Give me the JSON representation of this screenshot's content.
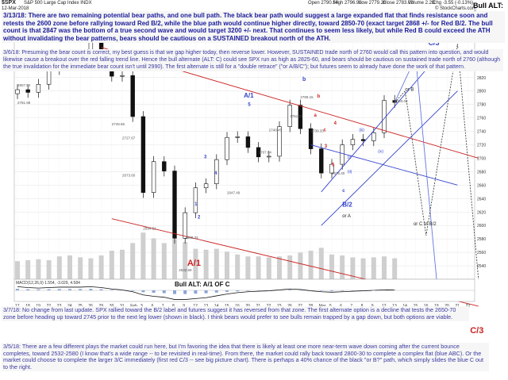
{
  "header": {
    "symbol": "$SPX",
    "name": "S&P 500 Large Cap Index  INDX",
    "date": "12-Mar-2018",
    "open": "Open 2790.54",
    "high": "High 2796.98",
    "low": "Low 2779.26",
    "close": "Close 2783.02",
    "volume": "Volume 2.2B",
    "change": "Chg -3.55 (-0.13%)",
    "watermark": "© StockCharts.com",
    "legend_spx": "■ $SPX (Daily) 2783.02",
    "legend_vol": "■ Volume 2,324,815,376",
    "bull_alt": "Bull ALT: 3"
  },
  "notes": {
    "top": "3/13/18:  There are two remaining potential bear paths, and one bull path.  The black bear path would suggest a large expanded flat that finds resistance soon and retests the 2600 zone before rallying toward Red B/2, while the blue path would continue higher directly, toward 2850-70 (exact target 2868 +/- for Red B/2.  The bull count is that 2847 was the bottom of a true second wave and would target 3200 +/- next.  That continues to seem less likely, but while Red B could exceed the ATH without invalidating the bear patterns, bears should be cautious on a SUSTAINED breakout north of the ATH.",
    "mid": "3/6/18:    Presuming the bear count is correct, my best guess is that we gap higher today, then reverse lower.  However, SUSTAINED trade north of 2760 would call this pattern into question, and would likewise cause a breakout over the red falling trend line.  Hence the bull alternate (ALT: C) could see SPX run as high as 2825-60, and bears should be cautious on sustained trade north of 2760 (although the true invalidation for the immediate bear count isn't until 2990).  The first alternate is still for a \"double retrace\" (\"or A/B/C\"); but futures seem to already have done the work of that pattern.",
    "b1": "3/7/18:  No change from last update.  SPX rallied toward the B/2 label and futures suggest it has reversed from that zone.  The first alternate option is a decline that tests the 2650-70 zone before heading up toward 2745 prior to the next leg lower (shown in black).  I think bears would prefer to see bulls remain trapped by a gap down, but both options are viable.",
    "b2": "3/5/18:  There are a few different plays the market could run here, but I'm favoring the idea that there is likely at least one more near-term wave down coming after the current bounce completes, toward 2532-2580 (I know that's a wide range -- to be revisited in real-time).  From there, the market could rally back toward 2800-30 to complete a complex flat (blue ABC).  Or the market could choose to complete the larger 3/C immediately (first red C/3 -- see big picture chart).  There is perhaps a 40% chance of the black \"or B?\" path, which simply slides the blue C out to the right."
  },
  "labels": {
    "a1_red": "A/1",
    "b2_red": "B/2?",
    "c3_blue": "C/3",
    "c3_red": "C/3",
    "a1_blue": "A/1",
    "five": "5",
    "b_blue": "b",
    "c_blue": "c",
    "b2_blue": "B/2",
    "or_a": "or A",
    "or_b": "or B",
    "or_c_b2": "or C of B/2",
    "i": "(i)",
    "ii": "(ii)",
    "iii": "(iii)",
    "iv": "(iv)",
    "w3": "3",
    "w4": "4",
    "w1": "1",
    "w2": "2",
    "r3": "3",
    "r4": "4",
    "r5": "5",
    "ra": "a",
    "rb": "b",
    "rc": "c",
    "bull_alt_macd": "Bull ALT: A/1 OF C",
    "macd": "MACD(12,26,9) 1.554, -3.029, 4.584"
  },
  "chart_data": {
    "type": "candlestick",
    "title": "$SPX S&P 500 Large Cap Index INDX",
    "ylabel": "",
    "ylim": [
      2520,
      2900
    ],
    "yticks": [
      2880,
      2860,
      2840,
      2820,
      2800,
      2780,
      2760,
      2740,
      2720,
      2700,
      2680,
      2660,
      2640,
      2620,
      2600,
      2580,
      2560,
      2540
    ],
    "x_labels": [
      "17",
      "18",
      "19",
      "22",
      "23",
      "24",
      "25",
      "26",
      "29",
      "30",
      "31",
      "Feb",
      "5",
      "6",
      "7",
      "8",
      "9",
      "12",
      "13",
      "14",
      "15",
      "16",
      "20",
      "21",
      "22",
      "23",
      "26",
      "27",
      "28",
      "Mar",
      "5",
      "6",
      "7",
      "8",
      "9",
      "12",
      "13",
      "14",
      "15",
      "16",
      "19",
      "20",
      "21",
      "22"
    ],
    "price_labels": [
      "2872.87",
      "2807.54",
      "2781.98",
      "2749.56",
      "2727.67",
      "2673.60",
      "2594.52",
      "2532.69",
      "2580.33",
      "2647.49",
      "2707.64",
      "2761.17",
      "2740.45",
      "2789.15",
      "2739.33",
      "2676.40",
      "2783.02"
    ],
    "series": [
      {
        "name": "$SPX (Daily)",
        "close": [
          2802,
          2798,
          2810,
          2832,
          2840,
          2838,
          2840,
          2873,
          2853,
          2822,
          2823,
          2762,
          2649,
          2695,
          2681,
          2581,
          2619,
          2656,
          2662,
          2698,
          2731,
          2732,
          2716,
          2702,
          2703,
          2747,
          2779,
          2744,
          2714,
          2678,
          2691,
          2720,
          2728,
          2726,
          2738,
          2786,
          2783
        ]
      }
    ],
    "macd": [
      16,
      12,
      10,
      12,
      14,
      14,
      14,
      16,
      12,
      6,
      2,
      -6,
      -20,
      -26,
      -30,
      -40,
      -40,
      -36,
      -32,
      -24,
      -16,
      -10,
      -6,
      -4,
      -2,
      2,
      6,
      4,
      -2,
      -6,
      -8,
      -6,
      -4,
      -2,
      0,
      2,
      1.554
    ],
    "volume": [
      1.9,
      2.0,
      2.1,
      2.0,
      2.4,
      2.5,
      2.3,
      2.2,
      2.5,
      3.0,
      3.1,
      3.8,
      4.9,
      4.3,
      3.8,
      4.2,
      3.9,
      3.2,
      3.1,
      3.2,
      2.9,
      2.6,
      2.4,
      2.4,
      2.3,
      2.4,
      2.5,
      2.8,
      3.0,
      3.3,
      2.6,
      2.5,
      2.3,
      2.2,
      2.3,
      2.4,
      2.2
    ]
  }
}
